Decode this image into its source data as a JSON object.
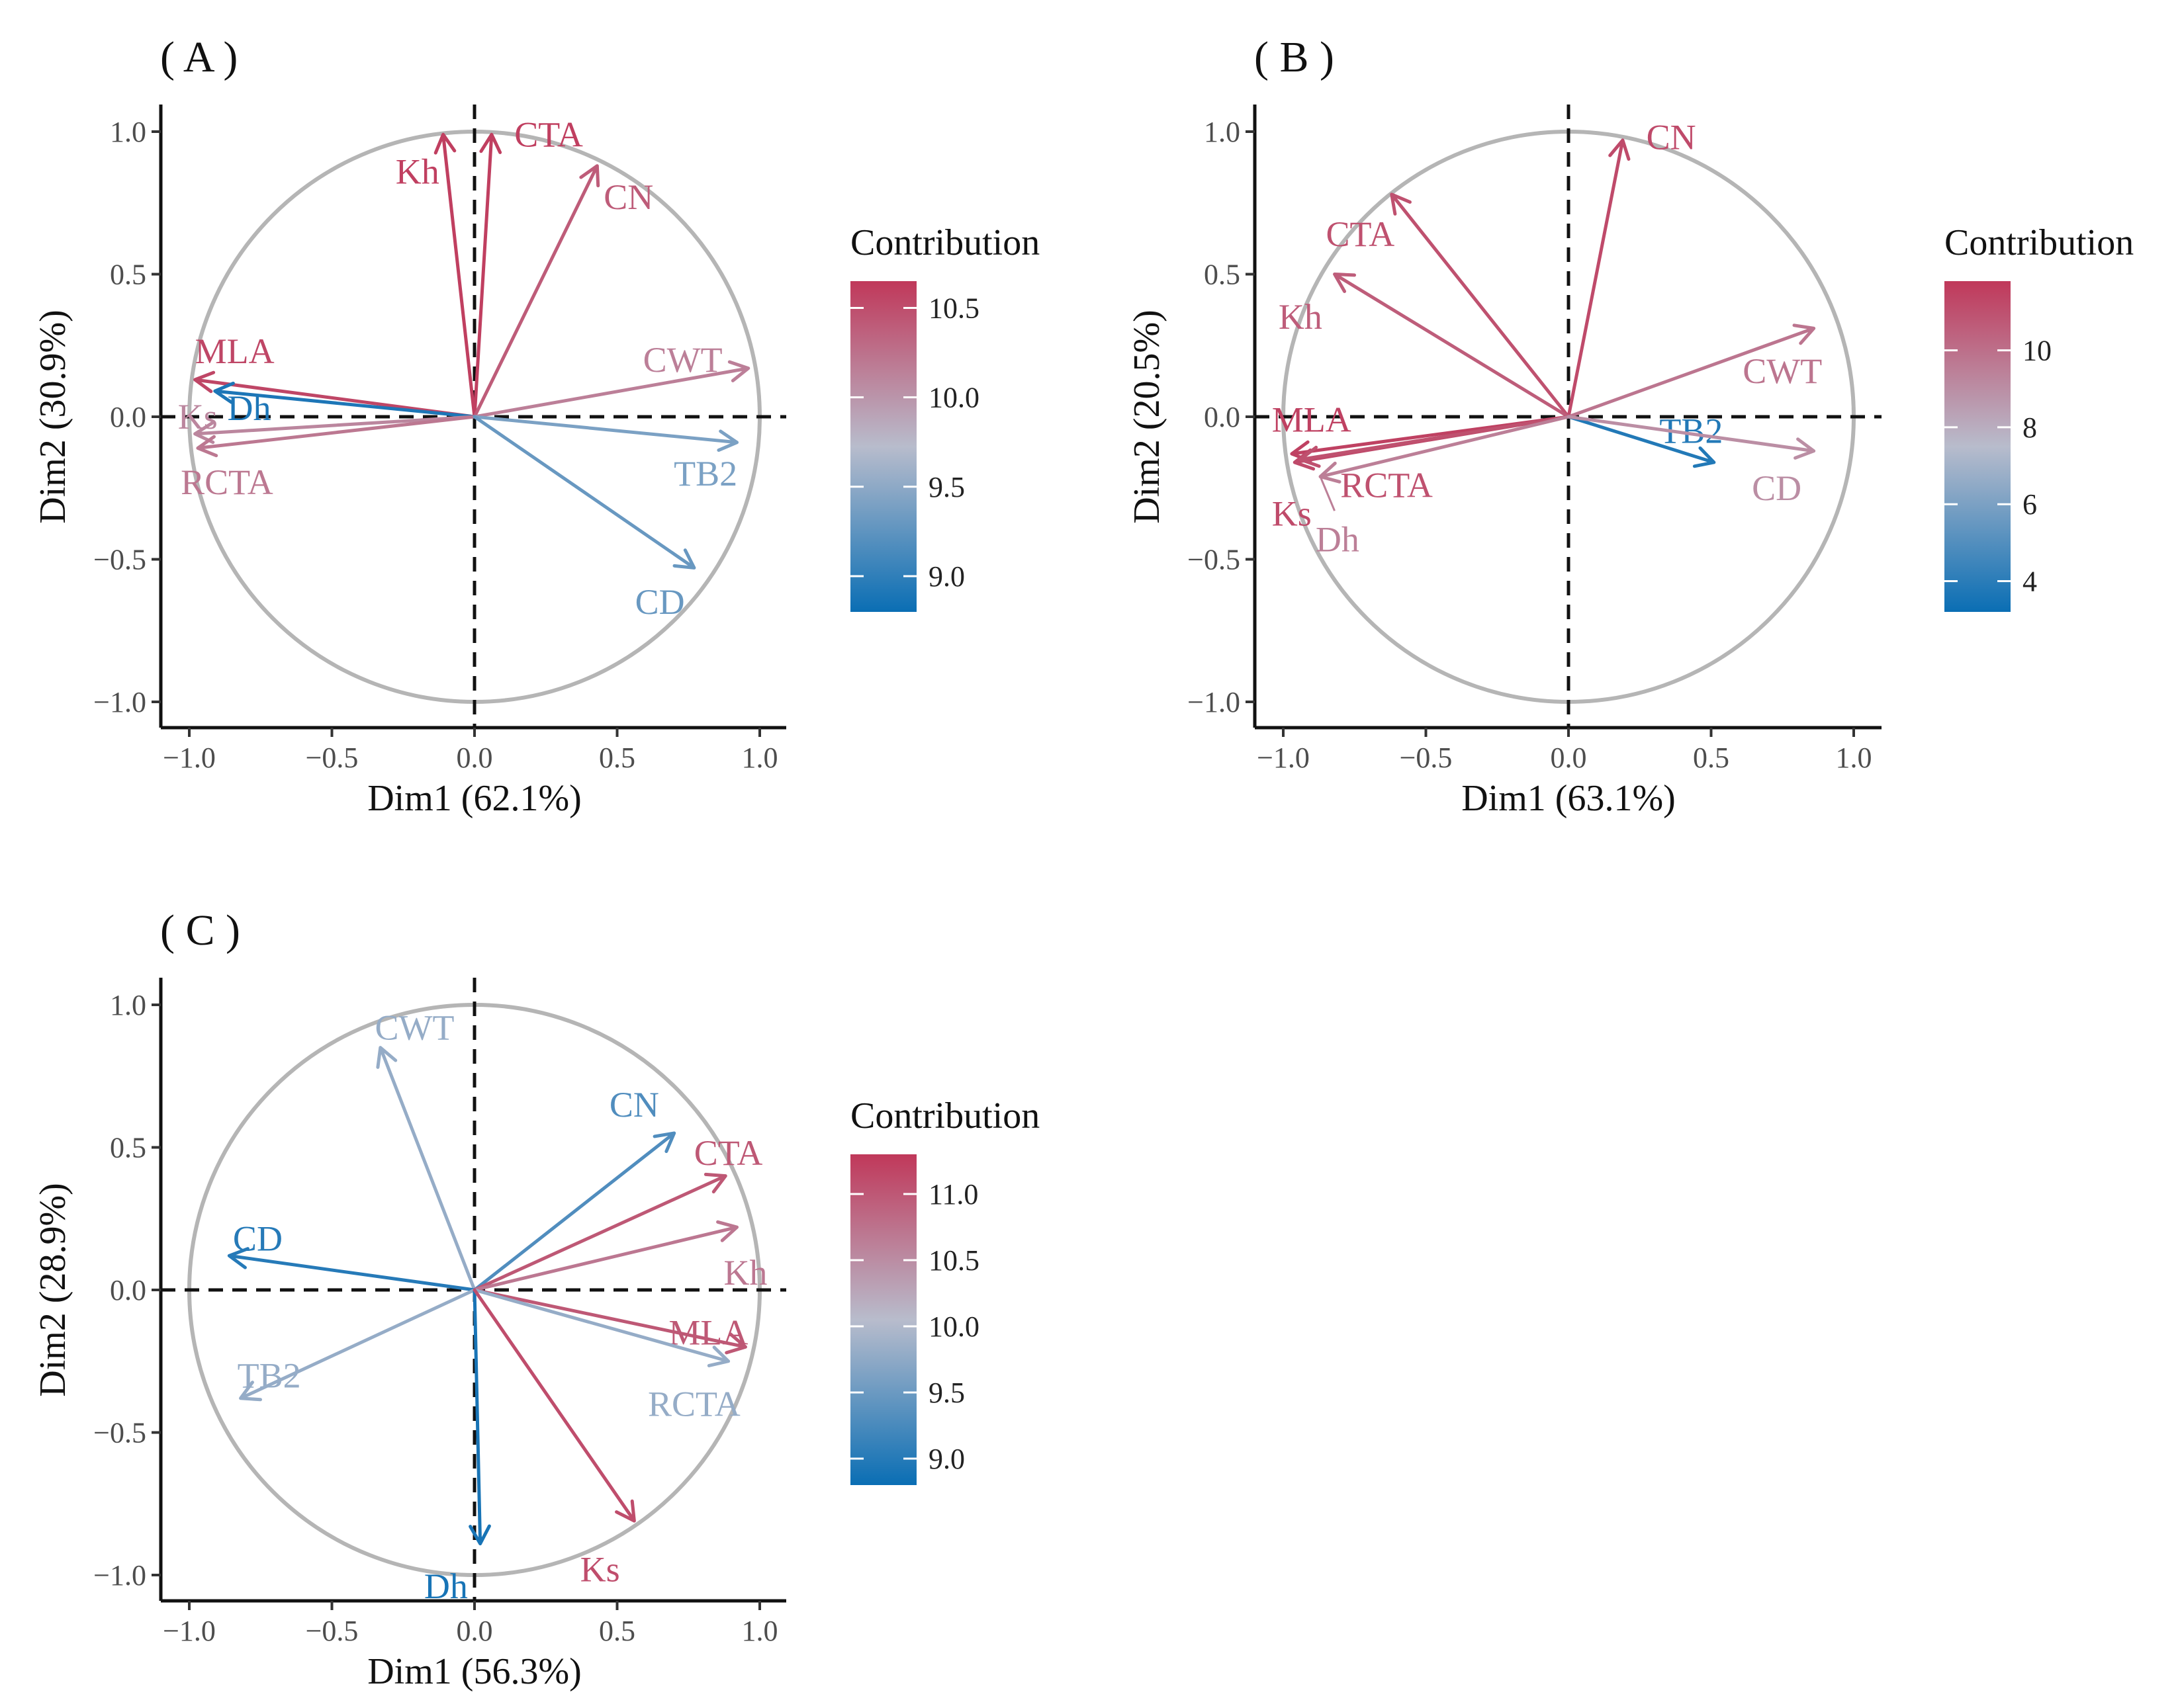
{
  "chart_data": [
    {
      "type": "pca-variable-correlation-circle",
      "panel_label": "( A )",
      "xlabel": "Dim1 (62.1%)",
      "ylabel": "Dim2 (30.9%)",
      "xlim": [
        -1.1,
        1.1
      ],
      "ylim": [
        -1.1,
        1.1
      ],
      "xticks": [
        -1.0,
        -0.5,
        0.0,
        0.5,
        1.0
      ],
      "yticks": [
        -1.0,
        -0.5,
        0.0,
        0.5,
        1.0
      ],
      "xtick_labels": [
        "−1.0",
        "−0.5",
        "0.0",
        "0.5",
        "1.0"
      ],
      "ytick_labels": [
        "−1.0",
        "−0.5",
        "0.0",
        "0.5",
        "1.0"
      ],
      "legend": {
        "title": "Contribution",
        "range": [
          8.8,
          10.65
        ],
        "ticks": [
          9.0,
          9.5,
          10.0,
          10.5
        ],
        "tick_labels": [
          "9.0",
          "9.5",
          "10.0",
          "10.5"
        ]
      },
      "variables": [
        {
          "name": "Kh",
          "x": -0.11,
          "y": 0.99,
          "contribution": 10.6
        },
        {
          "name": "CTA",
          "x": 0.06,
          "y": 0.99,
          "contribution": 10.6
        },
        {
          "name": "CN",
          "x": 0.43,
          "y": 0.88,
          "contribution": 10.4
        },
        {
          "name": "CWT",
          "x": 0.96,
          "y": 0.17,
          "contribution": 10.15
        },
        {
          "name": "MLA",
          "x": -0.98,
          "y": 0.13,
          "contribution": 10.55
        },
        {
          "name": "Dh",
          "x": -0.91,
          "y": 0.09,
          "contribution": 8.9
        },
        {
          "name": "Ks",
          "x": -0.98,
          "y": -0.06,
          "contribution": 10.1
        },
        {
          "name": "RCTA",
          "x": -0.97,
          "y": -0.11,
          "contribution": 10.2
        },
        {
          "name": "TB2",
          "x": 0.92,
          "y": -0.09,
          "contribution": 9.4
        },
        {
          "name": "CD",
          "x": 0.77,
          "y": -0.53,
          "contribution": 9.3
        }
      ]
    },
    {
      "type": "pca-variable-correlation-circle",
      "panel_label": "( B )",
      "xlabel": "Dim1 (63.1%)",
      "ylabel": "Dim2 (20.5%)",
      "xlim": [
        -1.1,
        1.1
      ],
      "ylim": [
        -1.1,
        1.1
      ],
      "xticks": [
        -1.0,
        -0.5,
        0.0,
        0.5,
        1.0
      ],
      "yticks": [
        -1.0,
        -0.5,
        0.0,
        0.5,
        1.0
      ],
      "xtick_labels": [
        "−1.0",
        "−0.5",
        "0.0",
        "0.5",
        "1.0"
      ],
      "ytick_labels": [
        "−1.0",
        "−0.5",
        "0.0",
        "0.5",
        "1.0"
      ],
      "legend": {
        "title": "Contribution",
        "range": [
          3.2,
          11.8
        ],
        "ticks": [
          4,
          6,
          8,
          10
        ],
        "tick_labels": [
          "4",
          "6",
          "8",
          "10"
        ]
      },
      "variables": [
        {
          "name": "CN",
          "x": 0.19,
          "y": 0.97,
          "contribution": 11.2
        },
        {
          "name": "CTA",
          "x": -0.62,
          "y": 0.78,
          "contribution": 11.0
        },
        {
          "name": "Kh",
          "x": -0.82,
          "y": 0.5,
          "contribution": 10.6
        },
        {
          "name": "CWT",
          "x": 0.86,
          "y": 0.31,
          "contribution": 9.8
        },
        {
          "name": "MLA",
          "x": -0.97,
          "y": -0.13,
          "contribution": 11.5
        },
        {
          "name": "Ks",
          "x": -0.96,
          "y": -0.16,
          "contribution": 11.2
        },
        {
          "name": "RCTA",
          "x": -0.94,
          "y": -0.15,
          "contribution": 11.0
        },
        {
          "name": "Dh",
          "x": -0.87,
          "y": -0.21,
          "contribution": 9.5
        },
        {
          "name": "TB2",
          "x": 0.51,
          "y": -0.16,
          "contribution": 3.8
        },
        {
          "name": "CD",
          "x": 0.86,
          "y": -0.12,
          "contribution": 9.0
        }
      ]
    },
    {
      "type": "pca-variable-correlation-circle",
      "panel_label": "( C )",
      "xlabel": "Dim1 (56.3%)",
      "ylabel": "Dim2 (28.9%)",
      "xlim": [
        -1.1,
        1.1
      ],
      "ylim": [
        -1.1,
        1.1
      ],
      "xticks": [
        -1.0,
        -0.5,
        0.0,
        0.5,
        1.0
      ],
      "yticks": [
        -1.0,
        -0.5,
        0.0,
        0.5,
        1.0
      ],
      "xtick_labels": [
        "−1.0",
        "−0.5",
        "0.0",
        "0.5",
        "1.0"
      ],
      "ytick_labels": [
        "−1.0",
        "−0.5",
        "0.0",
        "0.5",
        "1.0"
      ],
      "legend": {
        "title": "Contribution",
        "range": [
          8.8,
          11.3
        ],
        "ticks": [
          9.0,
          9.5,
          10.0,
          10.5,
          11.0
        ],
        "tick_labels": [
          "9.0",
          "9.5",
          "10.0",
          "10.5",
          "11.0"
        ]
      },
      "variables": [
        {
          "name": "CWT",
          "x": -0.33,
          "y": 0.85,
          "contribution": 9.8
        },
        {
          "name": "CN",
          "x": 0.7,
          "y": 0.55,
          "contribution": 9.3
        },
        {
          "name": "CTA",
          "x": 0.88,
          "y": 0.4,
          "contribution": 11.0
        },
        {
          "name": "Kh",
          "x": 0.92,
          "y": 0.22,
          "contribution": 10.7
        },
        {
          "name": "CD",
          "x": -0.86,
          "y": 0.12,
          "contribution": 9.0
        },
        {
          "name": "MLA",
          "x": 0.95,
          "y": -0.2,
          "contribution": 11.0
        },
        {
          "name": "RCTA",
          "x": 0.89,
          "y": -0.25,
          "contribution": 9.8
        },
        {
          "name": "TB2",
          "x": -0.82,
          "y": -0.38,
          "contribution": 9.8
        },
        {
          "name": "Dh",
          "x": 0.02,
          "y": -0.89,
          "contribution": 8.9
        },
        {
          "name": "Ks",
          "x": 0.56,
          "y": -0.81,
          "contribution": 11.1
        }
      ]
    }
  ],
  "colors": {
    "low": "#0a6eb4",
    "mid": "#b8bccc",
    "high": "#c0385a",
    "circle": "#b5b5b5",
    "axis": "#111111"
  }
}
